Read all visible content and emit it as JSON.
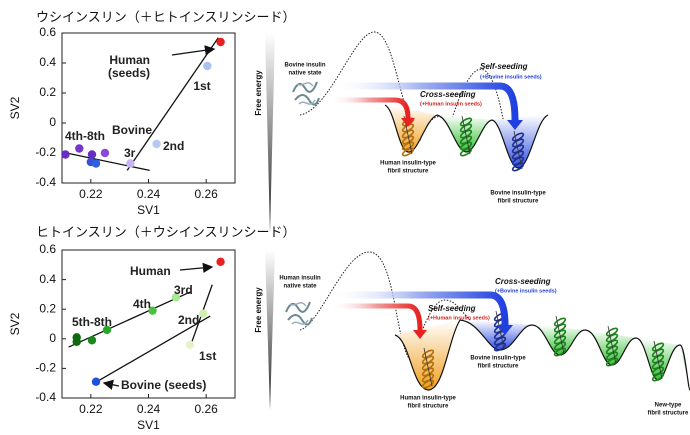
{
  "chart_data": [
    {
      "type": "scatter",
      "title": "ウシインスリン（＋ヒトインスリンシード）",
      "x_label": "SV1",
      "y_label": "SV2",
      "xlim": [
        0.21,
        0.27
      ],
      "xticks": [
        0.22,
        0.24,
        0.26
      ],
      "ylim": [
        -0.4,
        0.6
      ],
      "yticks": [
        -0.4,
        -0.2,
        0,
        0.2,
        0.4,
        0.6
      ],
      "x": [
        0.265,
        0.2604,
        0.2428,
        0.2337,
        0.2112,
        0.216,
        0.2204,
        0.2249,
        0.22,
        0.2218
      ],
      "y": [
        0.54,
        0.38,
        -0.14,
        -0.27,
        -0.21,
        -0.17,
        -0.21,
        -0.2,
        -0.26,
        -0.27
      ],
      "colors": [
        "#e82020",
        "#a9c2f0",
        "#b8c8f2",
        "#c8b4f0",
        "#6a2cc0",
        "#7436cc",
        "#6a2cc0",
        "#8a4ad8",
        "#3a4fd8",
        "#3060e0"
      ],
      "lines": [
        {
          "x": [
            0.2105,
            0.2404
          ],
          "y": [
            -0.196,
            -0.316
          ]
        },
        {
          "x": [
            0.2326,
            0.2642
          ],
          "y": [
            -0.316,
            0.568
          ]
        }
      ],
      "annotations": [
        "Human",
        "(seeds)",
        "1st",
        "2nd",
        "3r",
        "4th-8th",
        "Bovine"
      ]
    },
    {
      "type": "scatter",
      "title": "ヒトインスリン（＋ウシインスリンシード）",
      "x_label": "SV1",
      "y_label": "SV2",
      "xlim": [
        0.21,
        0.27
      ],
      "xticks": [
        0.22,
        0.24,
        0.26
      ],
      "ylim": [
        -0.4,
        0.6
      ],
      "yticks": [
        -0.4,
        -0.2,
        0,
        0.2,
        0.4,
        0.6
      ],
      "x": [
        0.265,
        0.2218,
        0.2544,
        0.259,
        0.2495,
        0.2414,
        0.2256,
        0.2204,
        0.2151,
        0.2151
      ],
      "y": [
        0.52,
        -0.29,
        -0.04,
        0.17,
        0.28,
        0.19,
        0.06,
        -0.01,
        0.01,
        -0.02
      ],
      "colors": [
        "#e82020",
        "#2050e0",
        "#e4f4c8",
        "#d0f0b0",
        "#a8e890",
        "#48c040",
        "#28a828",
        "#1a8a1a",
        "#0e6a0e",
        "#0e6a0e"
      ],
      "lines": [
        {
          "x": [
            0.2123,
            0.2544
          ],
          "y": [
            -0.056,
            0.316
          ]
        },
        {
          "x": [
            0.221,
            0.2614
          ],
          "y": [
            -0.302,
            0.154
          ]
        },
        {
          "x": [
            0.2544,
            0.2621
          ],
          "y": [
            -0.056,
            0.365
          ]
        }
      ],
      "annotations": [
        "Human",
        "5th-8th",
        "4th",
        "3rd",
        "2nd",
        "1st",
        "Bovine (seeds)"
      ]
    }
  ],
  "diagrams": [
    {
      "axis_label": "Free energy",
      "labels": [
        "Bovine insulin",
        "native state",
        "Self-seeding",
        "(+Bovine insulin seeds)",
        "Cross-seeding",
        "(+Human insulin seeds)",
        "Human insulin-type",
        "fibril structure",
        "Bovine insulin-type",
        "fibril structure"
      ]
    },
    {
      "axis_label": "Free energy",
      "labels": [
        "Human insulin",
        "native state",
        "Cross-seeding",
        "(+Bovine insulin seeds)",
        "Self-seeding",
        "(+Human insulin seeds)",
        "Bovine insulin-type",
        "fibril structure",
        "Human insulin-type",
        "fibril structure",
        "New-type",
        "fibril structure"
      ]
    }
  ]
}
